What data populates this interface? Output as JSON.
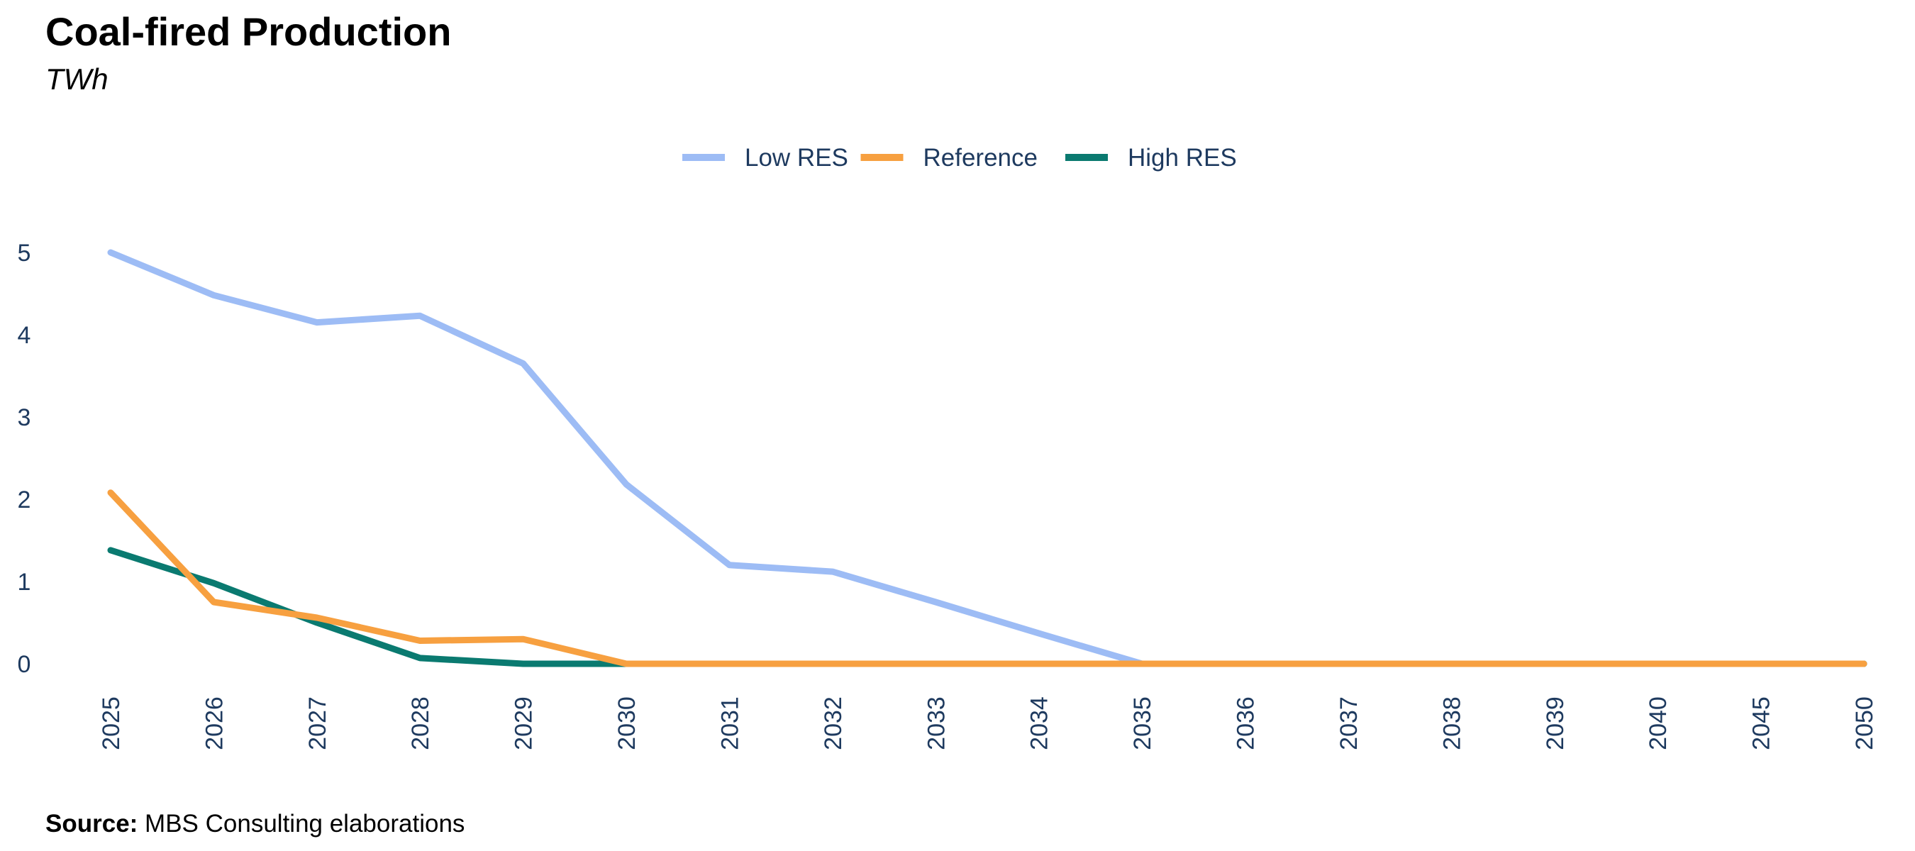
{
  "chart_data": {
    "type": "line",
    "title": "Coal-fired Production",
    "subtitle": "TWh",
    "x": [
      "2025",
      "2026",
      "2027",
      "2028",
      "2029",
      "2030",
      "2031",
      "2032",
      "2033",
      "2034",
      "2035",
      "2036",
      "2037",
      "2038",
      "2039",
      "2040",
      "2045",
      "2050"
    ],
    "ylim": [
      0,
      5
    ],
    "yticks": [
      0,
      1,
      2,
      3,
      4,
      5
    ],
    "grid": false,
    "legend_position": "top-center",
    "series": [
      {
        "name": "Low RES",
        "color": "#9dbcf5",
        "values": [
          5.0,
          4.48,
          4.15,
          4.23,
          3.65,
          2.18,
          1.2,
          1.12,
          0.75,
          0.37,
          0,
          0,
          0,
          0,
          0,
          0,
          0,
          0
        ]
      },
      {
        "name": "Reference",
        "color": "#f7a040",
        "values": [
          2.08,
          0.75,
          0.56,
          0.28,
          0.3,
          0,
          0,
          0,
          0,
          0,
          0,
          0,
          0,
          0,
          0,
          0,
          0,
          0
        ]
      },
      {
        "name": "High RES",
        "color": "#0a7a70",
        "values": [
          1.38,
          0.98,
          0.5,
          0.07,
          0,
          0,
          0,
          0,
          0,
          0,
          0,
          0,
          0,
          0,
          0,
          0,
          0,
          0
        ]
      }
    ],
    "source_label": "Source:",
    "source_text": "MBS Consulting elaborations"
  }
}
